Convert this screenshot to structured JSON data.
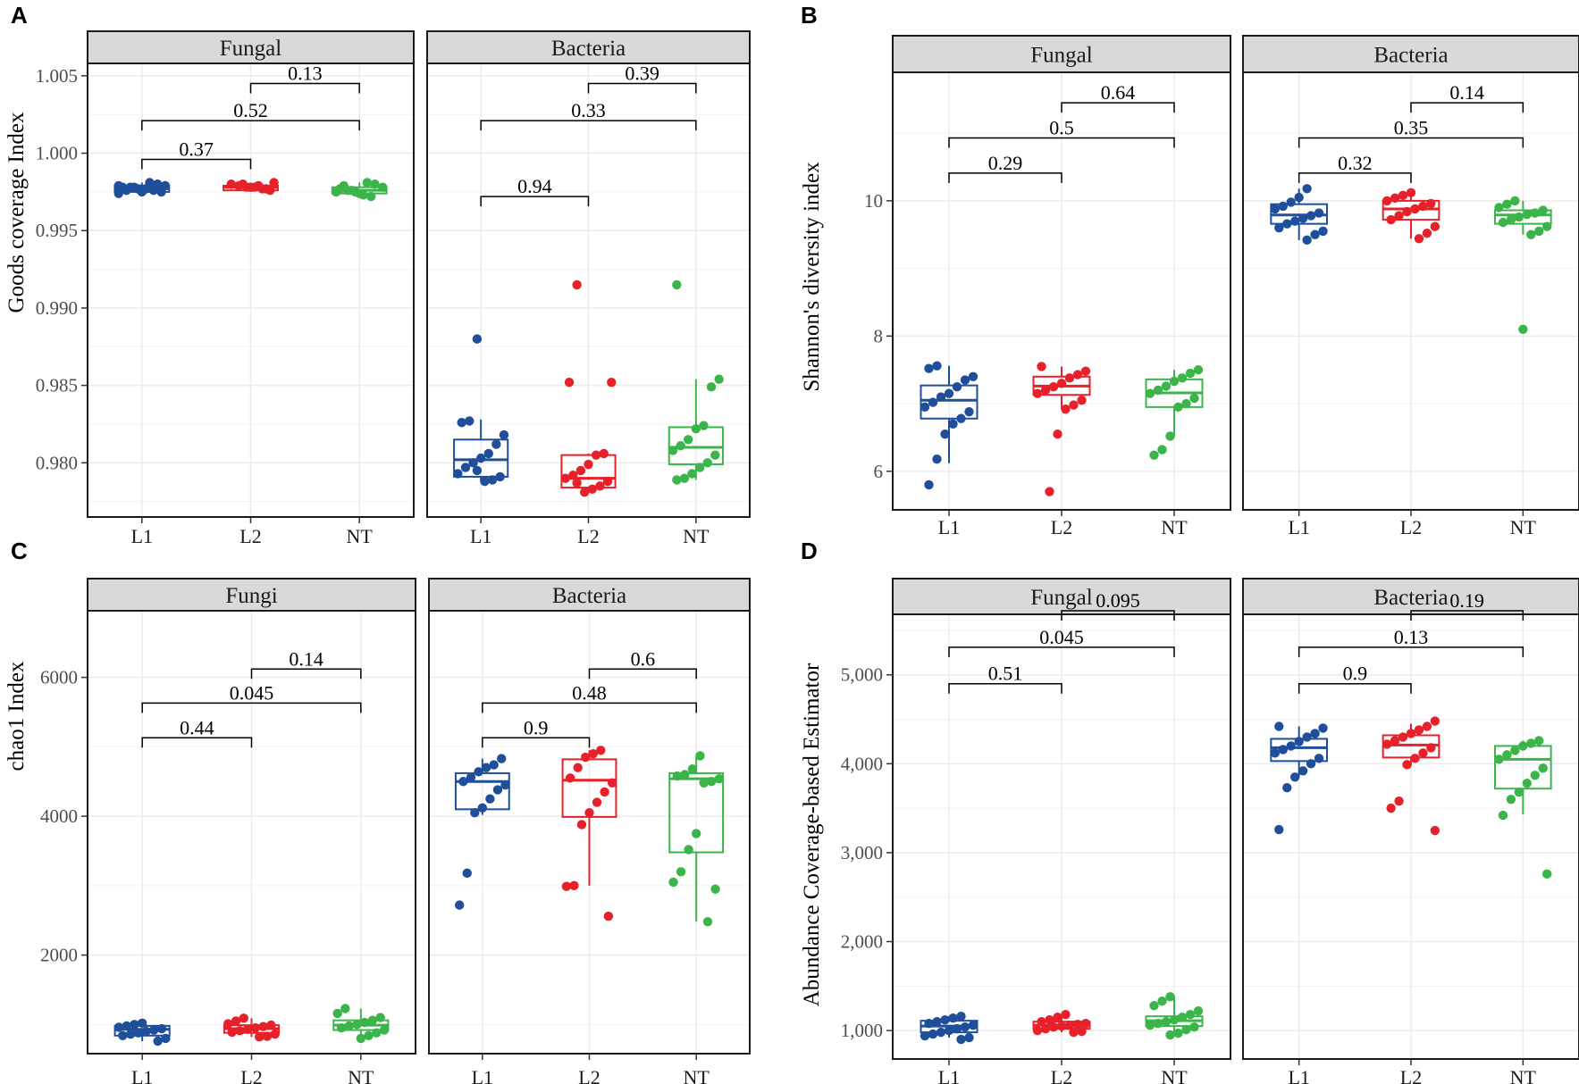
{
  "colors": {
    "L1": "#1f4e9a",
    "L2": "#e8202a",
    "NT": "#3bb54a",
    "strip": "#d9d9d9",
    "grid": "#ebebeb"
  },
  "chart_data": [
    {
      "type": "box",
      "panel_label": "A",
      "ylabel": "Goods coverage Index",
      "groups": [
        "L1",
        "L2",
        "NT"
      ],
      "yticks": [
        "0.980",
        "0.985",
        "0.990",
        "0.995",
        "1.000",
        "1.005"
      ],
      "ylim": [
        0.9765,
        1.0058
      ],
      "facets": [
        {
          "title": "Fungal",
          "boxes": [
            {
              "group": "L1",
              "q1": 0.9975,
              "median": 0.9977,
              "q3": 0.9979,
              "lower": 0.9974,
              "upper": 0.9981,
              "points": [
                0.9974,
                0.9975,
                0.9976,
                0.9977,
                0.9977,
                0.9978,
                0.9978,
                0.9979,
                0.998,
                0.9981,
                0.9975,
                0.9978,
                0.9976,
                0.9979
              ]
            },
            {
              "group": "L2",
              "q1": 0.9976,
              "median": 0.9978,
              "q3": 0.9979,
              "lower": 0.9975,
              "upper": 0.9981,
              "points": [
                0.9976,
                0.9977,
                0.9978,
                0.9978,
                0.9979,
                0.998,
                0.9981,
                0.9977,
                0.9979,
                0.9978,
                0.998
              ]
            },
            {
              "group": "NT",
              "q1": 0.9974,
              "median": 0.9976,
              "q3": 0.9978,
              "lower": 0.9972,
              "upper": 0.9981,
              "points": [
                0.9972,
                0.9973,
                0.9975,
                0.9976,
                0.9977,
                0.9978,
                0.998,
                0.9981,
                0.9974,
                0.9976,
                0.9979,
                0.9975
              ]
            }
          ],
          "comparisons": [
            {
              "g1": "L1",
              "g2": "L2",
              "label": "0.37",
              "y": 0.9996
            },
            {
              "g1": "L1",
              "g2": "NT",
              "label": "0.52",
              "y": 1.0021
            },
            {
              "g1": "L2",
              "g2": "NT",
              "label": "0.13",
              "y": 1.0045
            }
          ]
        },
        {
          "title": "Bacteria",
          "boxes": [
            {
              "group": "L1",
              "q1": 0.9791,
              "median": 0.9802,
              "q3": 0.9815,
              "lower": 0.9788,
              "upper": 0.9828,
              "points": [
                0.988,
                0.9827,
                0.9826,
                0.9818,
                0.9812,
                0.9806,
                0.9803,
                0.98,
                0.9797,
                0.9793,
                0.9791,
                0.9789,
                0.9788,
                0.9795
              ]
            },
            {
              "group": "L2",
              "q1": 0.9784,
              "median": 0.979,
              "q3": 0.9805,
              "lower": 0.9781,
              "upper": 0.9806,
              "points": [
                0.9915,
                0.9852,
                0.9852,
                0.9806,
                0.9805,
                0.9799,
                0.9795,
                0.9792,
                0.979,
                0.9788,
                0.9785,
                0.9783,
                0.9781,
                0.9787
              ]
            },
            {
              "group": "NT",
              "q1": 0.9799,
              "median": 0.981,
              "q3": 0.9823,
              "lower": 0.9789,
              "upper": 0.9854,
              "points": [
                0.9915,
                0.9854,
                0.9849,
                0.9824,
                0.9822,
                0.9815,
                0.9811,
                0.9808,
                0.9805,
                0.98,
                0.9797,
                0.9793,
                0.979,
                0.9789
              ]
            }
          ],
          "comparisons": [
            {
              "g1": "L1",
              "g2": "L2",
              "label": "0.94",
              "y": 0.9972
            },
            {
              "g1": "L1",
              "g2": "NT",
              "label": "0.33",
              "y": 1.0021
            },
            {
              "g1": "L2",
              "g2": "NT",
              "label": "0.39",
              "y": 1.0045
            }
          ]
        }
      ]
    },
    {
      "type": "box",
      "panel_label": "B",
      "ylabel": "Shannon's diversity index",
      "groups": [
        "L1",
        "L2",
        "NT"
      ],
      "yticks": [
        "6",
        "8",
        "10"
      ],
      "ylim": [
        5.43,
        11.9
      ],
      "facets": [
        {
          "title": "Fungal",
          "boxes": [
            {
              "group": "L1",
              "q1": 6.78,
              "median": 7.05,
              "q3": 7.27,
              "lower": 6.12,
              "upper": 7.56,
              "points": [
                7.56,
                7.52,
                7.4,
                7.35,
                7.25,
                7.15,
                7.1,
                7.02,
                6.95,
                6.88,
                6.78,
                6.7,
                6.55,
                6.18,
                5.8
              ]
            },
            {
              "group": "L2",
              "q1": 7.13,
              "median": 7.26,
              "q3": 7.4,
              "lower": 6.92,
              "upper": 7.55,
              "points": [
                7.55,
                7.48,
                7.43,
                7.38,
                7.3,
                7.25,
                7.2,
                7.15,
                7.05,
                6.98,
                6.92,
                6.55,
                5.7
              ]
            },
            {
              "group": "NT",
              "q1": 6.95,
              "median": 7.16,
              "q3": 7.36,
              "lower": 6.52,
              "upper": 7.5,
              "points": [
                7.5,
                7.45,
                7.38,
                7.33,
                7.26,
                7.2,
                7.15,
                7.08,
                7.0,
                6.95,
                6.52,
                6.32,
                6.24
              ]
            }
          ],
          "comparisons": [
            {
              "g1": "L1",
              "g2": "L2",
              "label": "0.29",
              "y": 10.41
            },
            {
              "g1": "L1",
              "g2": "NT",
              "label": "0.5",
              "y": 10.93
            },
            {
              "g1": "L2",
              "g2": "NT",
              "label": "0.64",
              "y": 11.45
            }
          ]
        },
        {
          "title": "Bacteria",
          "boxes": [
            {
              "group": "L1",
              "q1": 9.66,
              "median": 9.79,
              "q3": 9.95,
              "lower": 9.42,
              "upper": 10.18,
              "points": [
                10.18,
                10.05,
                9.98,
                9.92,
                9.88,
                9.82,
                9.78,
                9.74,
                9.7,
                9.66,
                9.6,
                9.55,
                9.5,
                9.42
              ]
            },
            {
              "group": "L2",
              "q1": 9.72,
              "median": 9.88,
              "q3": 10.0,
              "lower": 9.44,
              "upper": 10.12,
              "points": [
                10.12,
                10.08,
                10.04,
                10.0,
                9.96,
                9.92,
                9.88,
                9.84,
                9.78,
                9.72,
                9.62,
                9.52,
                9.44
              ]
            },
            {
              "group": "NT",
              "q1": 9.66,
              "median": 9.79,
              "q3": 9.86,
              "lower": 9.5,
              "upper": 10.0,
              "points": [
                10.0,
                9.95,
                9.9,
                9.86,
                9.82,
                9.8,
                9.76,
                9.72,
                9.68,
                9.62,
                9.55,
                9.5,
                8.1
              ]
            }
          ],
          "comparisons": [
            {
              "g1": "L1",
              "g2": "L2",
              "label": "0.32",
              "y": 10.41
            },
            {
              "g1": "L1",
              "g2": "NT",
              "label": "0.35",
              "y": 10.93
            },
            {
              "g1": "L2",
              "g2": "NT",
              "label": "0.14",
              "y": 11.45
            }
          ]
        }
      ]
    },
    {
      "type": "box",
      "panel_label": "C",
      "ylabel": "chao1 Index",
      "groups": [
        "L1",
        "L2",
        "NT"
      ],
      "yticks": [
        "2000",
        "4000",
        "6000"
      ],
      "ylim": [
        580,
        6960
      ],
      "facets": [
        {
          "title": "Fungi",
          "boxes": [
            {
              "group": "L1",
              "q1": 840,
              "median": 930,
              "q3": 980,
              "lower": 760,
              "upper": 1020,
              "points": [
                1020,
                1000,
                980,
                960,
                940,
                920,
                900,
                880,
                860,
                840,
                800,
                760
              ]
            },
            {
              "group": "L2",
              "q1": 880,
              "median": 940,
              "q3": 990,
              "lower": 820,
              "upper": 1090,
              "points": [
                1090,
                1050,
                1010,
                990,
                970,
                950,
                930,
                910,
                890,
                860,
                830,
                820
              ]
            },
            {
              "group": "NT",
              "q1": 920,
              "median": 990,
              "q3": 1060,
              "lower": 800,
              "upper": 1230,
              "points": [
                1230,
                1160,
                1100,
                1060,
                1030,
                1000,
                980,
                950,
                920,
                880,
                840,
                800
              ]
            }
          ],
          "comparisons": [
            {
              "g1": "L1",
              "g2": "L2",
              "label": "0.44",
              "y": 5130
            },
            {
              "g1": "L1",
              "g2": "NT",
              "label": "0.045",
              "y": 5630
            },
            {
              "g1": "L2",
              "g2": "NT",
              "label": "0.14",
              "y": 6120
            }
          ]
        },
        {
          "title": "Bacteria",
          "boxes": [
            {
              "group": "L1",
              "q1": 4100,
              "median": 4500,
              "q3": 4620,
              "lower": 4020,
              "upper": 4830,
              "points": [
                4830,
                4740,
                4700,
                4640,
                4560,
                4500,
                4450,
                4380,
                4250,
                4120,
                4050,
                3180,
                2720
              ]
            },
            {
              "group": "L2",
              "q1": 3990,
              "median": 4520,
              "q3": 4820,
              "lower": 3000,
              "upper": 4950,
              "points": [
                4950,
                4900,
                4850,
                4700,
                4550,
                4480,
                4350,
                4200,
                4050,
                3880,
                3000,
                2990,
                2560
              ]
            },
            {
              "group": "NT",
              "q1": 3480,
              "median": 4540,
              "q3": 4620,
              "lower": 2480,
              "upper": 4870,
              "points": [
                4870,
                4680,
                4600,
                4580,
                4540,
                4500,
                4480,
                3750,
                3520,
                3200,
                3050,
                2950,
                2480
              ]
            }
          ],
          "comparisons": [
            {
              "g1": "L1",
              "g2": "L2",
              "label": "0.9",
              "y": 5130
            },
            {
              "g1": "L1",
              "g2": "NT",
              "label": "0.48",
              "y": 5630
            },
            {
              "g1": "L2",
              "g2": "NT",
              "label": "0.6",
              "y": 6120
            }
          ]
        }
      ]
    },
    {
      "type": "box",
      "panel_label": "D",
      "ylabel": "Abundance Coverage-based Estimator",
      "groups": [
        "L1",
        "L2",
        "NT"
      ],
      "yticks": [
        "1,000",
        "2,000",
        "3,000",
        "4,000",
        "5,000"
      ],
      "ylim": [
        680,
        5680
      ],
      "facets": [
        {
          "title": "Fungal",
          "boxes": [
            {
              "group": "L1",
              "q1": 980,
              "median": 1050,
              "q3": 1110,
              "lower": 920,
              "upper": 1160,
              "points": [
                1160,
                1140,
                1120,
                1100,
                1080,
                1060,
                1040,
                1020,
                1000,
                980,
                960,
                940,
                920,
                900
              ]
            },
            {
              "group": "L2",
              "q1": 1020,
              "median": 1060,
              "q3": 1100,
              "lower": 980,
              "upper": 1180,
              "points": [
                1180,
                1150,
                1120,
                1100,
                1080,
                1070,
                1060,
                1050,
                1040,
                1020,
                1000,
                990,
                980
              ]
            },
            {
              "group": "NT",
              "q1": 1050,
              "median": 1110,
              "q3": 1160,
              "lower": 950,
              "upper": 1380,
              "points": [
                1380,
                1330,
                1280,
                1220,
                1180,
                1150,
                1120,
                1100,
                1080,
                1060,
                1040,
                1010,
                970,
                950
              ]
            }
          ],
          "comparisons": [
            {
              "g1": "L1",
              "g2": "L2",
              "label": "0.51",
              "y": 4900
            },
            {
              "g1": "L1",
              "g2": "NT",
              "label": "0.045",
              "y": 5310
            },
            {
              "g1": "L2",
              "g2": "NT",
              "label": "0.095",
              "y": 5720
            }
          ]
        },
        {
          "title": "Bacteria",
          "boxes": [
            {
              "group": "L1",
              "q1": 4030,
              "median": 4180,
              "q3": 4280,
              "lower": 3850,
              "upper": 4420,
              "points": [
                4420,
                4400,
                4340,
                4300,
                4250,
                4200,
                4160,
                4120,
                4060,
                4000,
                3920,
                3850,
                3730,
                3260
              ]
            },
            {
              "group": "L2",
              "q1": 4070,
              "median": 4210,
              "q3": 4320,
              "lower": 3980,
              "upper": 4450,
              "points": [
                4480,
                4420,
                4380,
                4340,
                4300,
                4260,
                4220,
                4180,
                4120,
                4060,
                3990,
                3580,
                3500,
                3250
              ]
            },
            {
              "group": "NT",
              "q1": 3720,
              "median": 4050,
              "q3": 4200,
              "lower": 3430,
              "upper": 4260,
              "points": [
                4260,
                4230,
                4200,
                4150,
                4100,
                4050,
                3950,
                3870,
                3780,
                3680,
                3600,
                3420,
                2760
              ]
            }
          ],
          "comparisons": [
            {
              "g1": "L1",
              "g2": "L2",
              "label": "0.9",
              "y": 4900
            },
            {
              "g1": "L1",
              "g2": "NT",
              "label": "0.13",
              "y": 5310
            },
            {
              "g1": "L2",
              "g2": "NT",
              "label": "0.19",
              "y": 5720
            }
          ]
        }
      ]
    }
  ]
}
